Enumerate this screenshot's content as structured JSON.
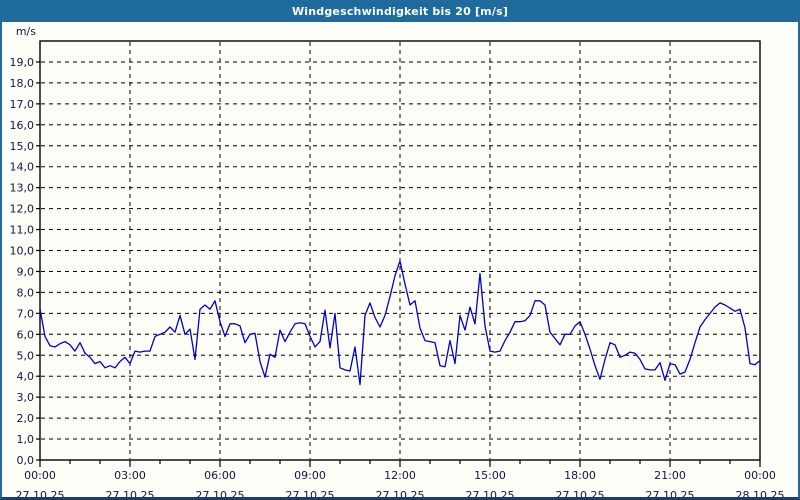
{
  "window": {
    "title": "Windgeschwindigkeit bis 20 [m/s]"
  },
  "colors": {
    "title_bar_bg": "#1f6b9e",
    "title_text": "#ffffff",
    "page_bg": "#fdfef7",
    "outer_border": "#2269a0",
    "bottom_border": "#1b3c72",
    "plot_frame": "#000000",
    "gridline": "#000000",
    "tick_label": "#16163c",
    "series_line": "#0000cd"
  },
  "chart_data": {
    "type": "line",
    "title": "Windgeschwindigkeit bis 20 [m/s]",
    "ylabel_unit": "m/s",
    "ylim": [
      0,
      20
    ],
    "y_major_step": 1.0,
    "y_tick_labels": [
      "0,0",
      "1,0",
      "2,0",
      "3,0",
      "4,0",
      "5,0",
      "6,0",
      "7,0",
      "8,0",
      "9,0",
      "10,0",
      "11,0",
      "12,0",
      "13,0",
      "14,0",
      "15,0",
      "16,0",
      "17,0",
      "18,0",
      "19,0"
    ],
    "grid": "dashed",
    "legend": "none",
    "x_hours_span": 24,
    "x_minor_step_hours": 1,
    "x_ticks": [
      {
        "hour": 0,
        "time": "00:00",
        "date": "27.10.25"
      },
      {
        "hour": 3,
        "time": "03:00",
        "date": "27.10.25"
      },
      {
        "hour": 6,
        "time": "06:00",
        "date": "27.10.25"
      },
      {
        "hour": 9,
        "time": "09:00",
        "date": "27.10.25"
      },
      {
        "hour": 12,
        "time": "12:00",
        "date": "27.10.25"
      },
      {
        "hour": 15,
        "time": "15:00",
        "date": "27.10.25"
      },
      {
        "hour": 18,
        "time": "18:00",
        "date": "27.10.25"
      },
      {
        "hour": 21,
        "time": "21:00",
        "date": "27.10.25"
      },
      {
        "hour": 24,
        "time": "00:00",
        "date": "28.10.25"
      }
    ],
    "series": [
      {
        "name": "Windgeschwindigkeit",
        "start_hour": 0,
        "interval_min": 10,
        "values": [
          7.2,
          5.9,
          5.45,
          5.4,
          5.55,
          5.65,
          5.5,
          5.2,
          5.6,
          5.1,
          4.9,
          4.6,
          4.7,
          4.4,
          4.5,
          4.4,
          4.7,
          4.9,
          4.6,
          5.2,
          5.15,
          5.2,
          5.2,
          5.9,
          6.0,
          6.1,
          6.35,
          6.1,
          6.9,
          6.0,
          6.25,
          4.8,
          7.2,
          7.4,
          7.2,
          7.6,
          6.6,
          5.9,
          6.5,
          6.5,
          6.4,
          5.6,
          6.0,
          6.05,
          4.7,
          3.95,
          5.05,
          4.9,
          6.2,
          5.65,
          6.1,
          6.5,
          6.55,
          6.5,
          5.9,
          5.4,
          5.65,
          7.15,
          5.35,
          7.0,
          4.4,
          4.3,
          4.25,
          5.4,
          3.6,
          6.9,
          7.5,
          6.8,
          6.35,
          6.9,
          7.8,
          8.8,
          9.5,
          8.4,
          7.4,
          7.6,
          6.3,
          5.7,
          5.65,
          5.6,
          4.5,
          4.45,
          5.7,
          4.6,
          6.9,
          6.2,
          7.3,
          6.5,
          8.9,
          6.4,
          5.2,
          5.15,
          5.2,
          5.7,
          6.1,
          6.6,
          6.6,
          6.65,
          6.9,
          7.6,
          7.6,
          7.4,
          6.1,
          5.8,
          5.5,
          6.0,
          6.0,
          6.4,
          6.6,
          6.0,
          5.3,
          4.5,
          3.85,
          4.8,
          5.6,
          5.5,
          4.9,
          5.0,
          5.15,
          5.1,
          4.8,
          4.35,
          4.3,
          4.3,
          4.65,
          3.8,
          4.6,
          4.55,
          4.1,
          4.2,
          4.8,
          5.6,
          6.35,
          6.7,
          7.0,
          7.3,
          7.5,
          7.4,
          7.25,
          7.1,
          7.2,
          6.3,
          4.6,
          4.55,
          4.75
        ]
      }
    ]
  }
}
